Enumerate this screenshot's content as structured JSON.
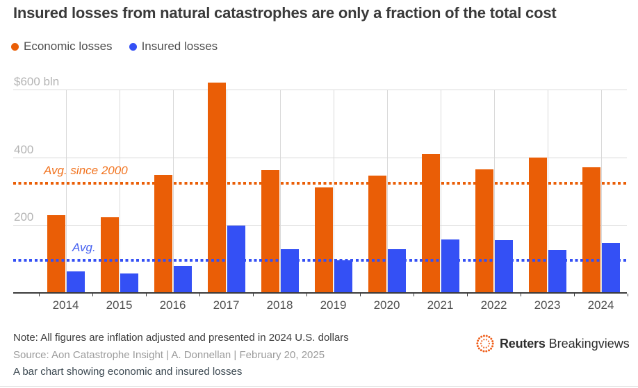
{
  "title": "Insured losses from natural catastrophes are only a fraction of the total cost",
  "legend": [
    {
      "label": "Economic losses",
      "color": "#ea5e06"
    },
    {
      "label": "Insured losses",
      "color": "#3450f5"
    }
  ],
  "chart_data": {
    "type": "bar",
    "title": "Insured losses from natural catastrophes are only a fraction of the total cost",
    "unit": "$ bln",
    "categories": [
      "2014",
      "2015",
      "2016",
      "2017",
      "2018",
      "2019",
      "2020",
      "2021",
      "2022",
      "2023",
      "2024"
    ],
    "series": [
      {
        "name": "Economic losses",
        "color": "#ea5e06",
        "values": [
          227,
          221,
          346,
          619,
          360,
          310,
          345,
          408,
          363,
          398,
          368
        ]
      },
      {
        "name": "Insured losses",
        "color": "#3450f5",
        "values": [
          61,
          55,
          77,
          197,
          128,
          95,
          126,
          155,
          154,
          124,
          145
        ]
      }
    ],
    "annotations": [
      {
        "label": "Avg. since 2000",
        "value": 324,
        "series": "Economic losses",
        "line_color": "#ea5e06",
        "label_color": "#f1731f"
      },
      {
        "label": "Avg.",
        "value": 96,
        "series": "Insured losses",
        "line_color": "#3450f5",
        "label_color": "#4560f0"
      }
    ],
    "yticks": [
      {
        "value": 600,
        "label": "$600 bln"
      },
      {
        "value": 400,
        "label": "400"
      },
      {
        "value": 200,
        "label": "200"
      }
    ],
    "ylim": [
      0,
      620
    ],
    "scale_max": 600,
    "grid": true,
    "legend_position": "top"
  },
  "footer": {
    "note": "Note: All figures are inflation adjusted and presented in 2024 U.S. dollars",
    "source": "Source: Aon Catastrophe Insight | A. Donnellan | February 20, 2025",
    "caption": "A bar chart showing economic and insured losses"
  },
  "branding": {
    "brand_bold": "Reuters",
    "brand_regular": "Breakingviews",
    "logo_icon": "reuters-dotted-circle-icon",
    "logo_color": "#ee5711"
  }
}
